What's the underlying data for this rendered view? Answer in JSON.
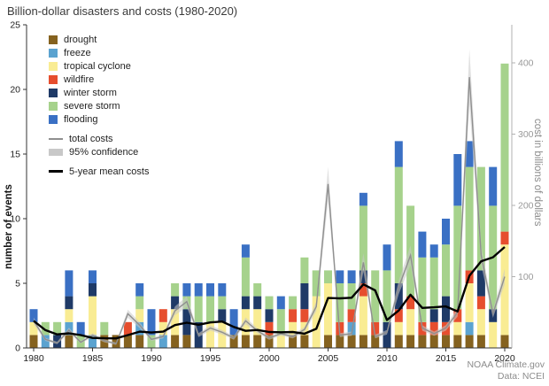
{
  "title": "Billion-dollar disasters and costs (1980-2020)",
  "footer": {
    "line1": "NOAA Climate.gov",
    "line2": "Data: NCEI"
  },
  "chart_data": {
    "type": "bar",
    "subtype": "stacked-bars-with-cost-lines",
    "ylabel_left": "number of events",
    "ylabel_right": "cost in billions of dollars",
    "ylim_left": [
      0,
      25
    ],
    "ylim_right": [
      0,
      453
    ],
    "yticks_left": [
      0,
      5,
      10,
      15,
      20,
      25
    ],
    "yticks_right": [
      100,
      200,
      300,
      400
    ],
    "xticks": [
      1980,
      1985,
      1990,
      1995,
      2000,
      2005,
      2010,
      2015,
      2020
    ],
    "x_years": [
      1980,
      1981,
      1982,
      1983,
      1984,
      1985,
      1986,
      1987,
      1988,
      1989,
      1990,
      1991,
      1992,
      1993,
      1994,
      1995,
      1996,
      1997,
      1998,
      1999,
      2000,
      2001,
      2002,
      2003,
      2004,
      2005,
      2006,
      2007,
      2008,
      2009,
      2010,
      2011,
      2012,
      2013,
      2014,
      2015,
      2016,
      2017,
      2018,
      2019,
      2020
    ],
    "series": [
      {
        "key": "drought",
        "label": "drought",
        "color": "#85621f",
        "values": [
          1,
          0,
          0,
          1,
          0,
          0,
          1,
          1,
          1,
          1,
          0,
          0,
          1,
          1,
          0,
          0,
          0,
          1,
          1,
          1,
          1,
          0,
          1,
          1,
          0,
          1,
          1,
          1,
          1,
          1,
          0,
          1,
          1,
          1,
          1,
          1,
          1,
          1,
          1,
          0,
          1
        ]
      },
      {
        "key": "freeze",
        "label": "freeze",
        "color": "#5ba3d0",
        "values": [
          0,
          1,
          0,
          1,
          0,
          1,
          0,
          0,
          0,
          1,
          0,
          1,
          0,
          0,
          0,
          0,
          0,
          0,
          0,
          0,
          0,
          0,
          0,
          0,
          0,
          0,
          0,
          1,
          0,
          0,
          0,
          0,
          0,
          0,
          0,
          0,
          0,
          1,
          0,
          0,
          0
        ]
      },
      {
        "key": "tropical-cyclone",
        "label": "tropical cyclone",
        "color": "#f9ec93",
        "values": [
          1,
          0,
          0,
          1,
          0,
          3,
          0,
          0,
          0,
          1,
          0,
          1,
          2,
          0,
          0,
          2,
          2,
          0,
          2,
          2,
          0,
          1,
          1,
          1,
          4,
          4,
          0,
          0,
          3,
          0,
          0,
          1,
          2,
          0,
          0,
          0,
          1,
          3,
          2,
          2,
          7
        ]
      },
      {
        "key": "wildfire",
        "label": "wildfire",
        "color": "#e64e2e",
        "values": [
          0,
          0,
          0,
          0,
          0,
          0,
          0,
          0,
          1,
          0,
          0,
          1,
          0,
          0,
          0,
          0,
          0,
          0,
          0,
          0,
          1,
          0,
          1,
          1,
          0,
          0,
          1,
          1,
          1,
          1,
          0,
          1,
          1,
          1,
          1,
          1,
          1,
          1,
          1,
          0,
          1
        ]
      },
      {
        "key": "winter-storm",
        "label": "winter storm",
        "color": "#1f3a67",
        "values": [
          0,
          0,
          1,
          1,
          0,
          1,
          0,
          0,
          0,
          0,
          0,
          0,
          1,
          2,
          2,
          0,
          1,
          0,
          1,
          1,
          1,
          0,
          0,
          2,
          0,
          0,
          0,
          0,
          1,
          0,
          2,
          2,
          0,
          0,
          1,
          2,
          0,
          0,
          2,
          1,
          0
        ]
      },
      {
        "key": "severe-storm",
        "label": "severe storm",
        "color": "#a6d28c",
        "values": [
          0,
          1,
          1,
          0,
          1,
          0,
          1,
          0,
          0,
          1,
          1,
          0,
          1,
          1,
          2,
          2,
          1,
          0,
          3,
          1,
          1,
          2,
          1,
          2,
          2,
          1,
          3,
          2,
          5,
          4,
          4,
          9,
          7,
          5,
          4,
          4,
          8,
          8,
          8,
          8,
          13
        ]
      },
      {
        "key": "flooding",
        "label": "flooding",
        "color": "#3a70c4",
        "values": [
          1,
          0,
          0,
          2,
          1,
          1,
          0,
          0,
          0,
          1,
          2,
          0,
          0,
          1,
          1,
          1,
          1,
          2,
          1,
          0,
          0,
          1,
          0,
          0,
          0,
          0,
          1,
          1,
          1,
          0,
          2,
          2,
          0,
          2,
          1,
          2,
          4,
          2,
          0,
          3,
          0
        ]
      }
    ],
    "lines": {
      "total_costs": {
        "label": "total costs",
        "color": "#8f8f8f",
        "values": [
          38,
          12,
          7,
          25,
          8,
          18,
          10,
          6,
          48,
          32,
          12,
          16,
          52,
          65,
          18,
          28,
          22,
          14,
          38,
          24,
          14,
          20,
          16,
          26,
          58,
          230,
          18,
          20,
          120,
          16,
          22,
          85,
          130,
          28,
          20,
          28,
          50,
          380,
          130,
          48,
          100
        ]
      },
      "confidence": {
        "label": "95% confidence",
        "color": "#c8c8c8",
        "pct": 10
      },
      "mean5": {
        "label": "5-year mean costs",
        "color": "#000000",
        "window": 5
      }
    }
  }
}
